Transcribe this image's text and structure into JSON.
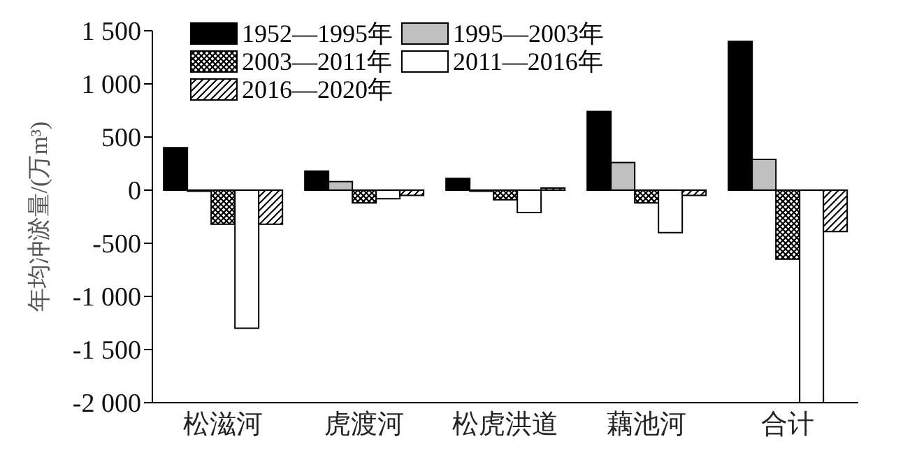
{
  "chart_data": {
    "type": "bar",
    "ylabel": "年均冲淤量/(万m³)",
    "categories": [
      "松滋河",
      "虎渡河",
      "松虎洪道",
      "藕池河",
      "合计"
    ],
    "series": [
      {
        "name": "1952—1995年",
        "color": "#000000",
        "values": [
          400,
          180,
          110,
          740,
          1400
        ]
      },
      {
        "name": "1995—2003年",
        "color": "#c0c0c0",
        "values": [
          -10,
          80,
          -10,
          260,
          290
        ]
      },
      {
        "name": "2003—2011年",
        "color": "#000000",
        "values": [
          -320,
          -120,
          -90,
          -120,
          -650
        ]
      },
      {
        "name": "2011—2016年",
        "color": "#ffffff",
        "values": [
          -1300,
          -80,
          -210,
          -400,
          -2000
        ]
      },
      {
        "name": "2016—2020年",
        "color": "#000000",
        "values": [
          -320,
          -50,
          20,
          -50,
          -390
        ]
      }
    ],
    "ylim": [
      -2000,
      1500
    ],
    "yticks": [
      {
        "value": -2000,
        "label": "-2 000"
      },
      {
        "value": -1500,
        "label": "-1 500"
      },
      {
        "value": -1000,
        "label": "-1 000"
      },
      -500,
      0,
      500,
      {
        "value": 1000,
        "label": "1 000"
      },
      {
        "value": 1500,
        "label": "1 500"
      }
    ],
    "grid": false,
    "legend": "top left"
  }
}
